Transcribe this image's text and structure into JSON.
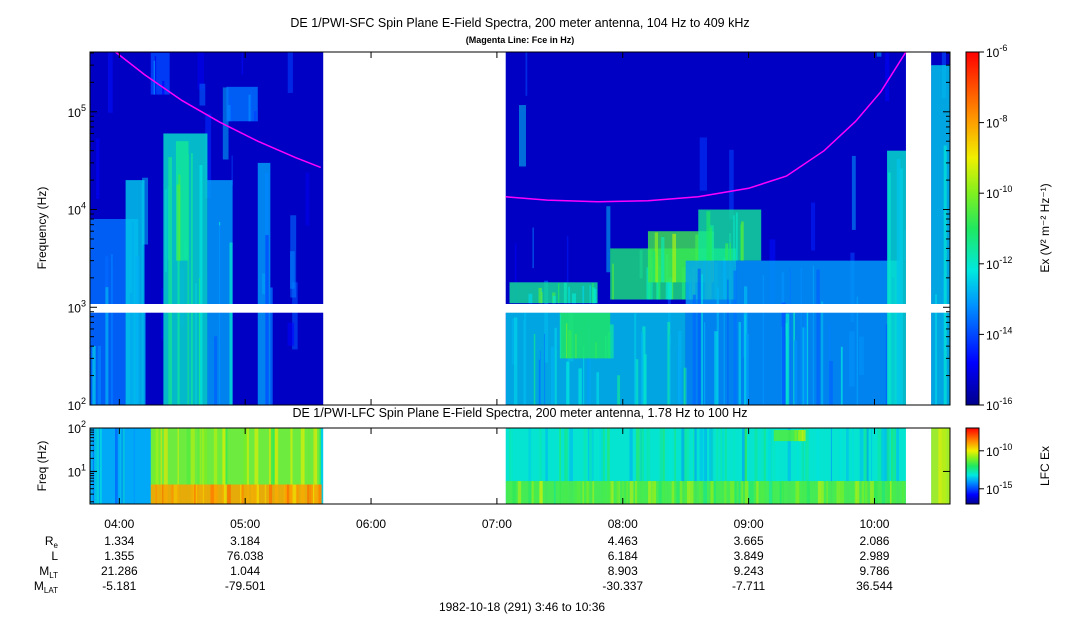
{
  "top_panel": {
    "title": "DE 1/PWI-SFC  Spin Plane E-Field Spectra, 200 meter antenna, 104 Hz to 409 kHz",
    "subtitle": "(Magenta Line: Fce in Hz)",
    "ylabel": "Frequency (Hz)",
    "colorbar_label": "Ex (V² m⁻² Hz⁻¹)"
  },
  "bottom_panel": {
    "title": "DE 1/PWI-LFC  Spin Plane E-Field Spectra, 200 meter antenna, 1.78 Hz to 100 Hz",
    "ylabel": "Freq (Hz)",
    "colorbar_label": "LFC Ex"
  },
  "footer": {
    "caption": "1982-10-18 (291) 3:46 to 10:36"
  },
  "orbit_table": {
    "row_labels": [
      {
        "main": "R",
        "sub": "e"
      },
      {
        "main": "L",
        "sub": ""
      },
      {
        "main": "M",
        "sub": "LT"
      },
      {
        "main": "M",
        "sub": "LAT"
      }
    ],
    "columns": [
      {
        "time": 4.0,
        "values": [
          "1.334",
          "1.355",
          "21.286",
          "-5.181"
        ]
      },
      {
        "time": 5.0,
        "values": [
          "3.184",
          "76.038",
          "1.044",
          "-79.501"
        ]
      },
      {
        "time": 8.0,
        "values": [
          "4.463",
          "6.184",
          "8.903",
          "-30.337"
        ]
      },
      {
        "time": 9.0,
        "values": [
          "3.665",
          "3.849",
          "9.243",
          "-7.711"
        ]
      },
      {
        "time": 10.0,
        "values": [
          "2.086",
          "2.989",
          "9.786",
          "36.544"
        ]
      }
    ]
  },
  "chart_data": [
    {
      "type": "heatmap",
      "name": "sfc_spectrogram",
      "x_unit": "hours UT",
      "xlim": [
        3.767,
        10.6
      ],
      "y_scale": "log",
      "ylim": [
        100,
        409000
      ],
      "y_ticks": [
        {
          "value": 100,
          "base": "10",
          "exp": "2"
        },
        {
          "value": 1000,
          "base": "10",
          "exp": "3"
        },
        {
          "value": 10000,
          "base": "10",
          "exp": "4"
        },
        {
          "value": 100000,
          "base": "10",
          "exp": "5"
        }
      ],
      "x_ticks": [
        {
          "value": 4,
          "label": "04:00"
        },
        {
          "value": 5,
          "label": "05:00"
        },
        {
          "value": 6,
          "label": "06:00"
        },
        {
          "value": 7,
          "label": "07:00"
        },
        {
          "value": 8,
          "label": "08:00"
        },
        {
          "value": 9,
          "label": "09:00"
        },
        {
          "value": 10,
          "label": "10:00"
        }
      ],
      "data_gaps": [
        [
          5.62,
          7.07
        ],
        [
          10.25,
          10.45
        ]
      ],
      "missing_band_hz": [
        880,
        1080
      ],
      "colorbar": {
        "scale": "log",
        "range": [
          1e-16,
          1e-06
        ],
        "ticks": [
          {
            "value": 1e-06,
            "base": "10",
            "exp": "-6"
          },
          {
            "value": 1e-08,
            "base": "10",
            "exp": "-8"
          },
          {
            "value": 1e-10,
            "base": "10",
            "exp": "-10"
          },
          {
            "value": 1e-12,
            "base": "10",
            "exp": "-12"
          },
          {
            "value": 1e-14,
            "base": "10",
            "exp": "-14"
          },
          {
            "value": 1e-16,
            "base": "10",
            "exp": "-16"
          }
        ]
      },
      "fce_line": {
        "color": "#ff00ff",
        "points": [
          [
            3.97,
            409000
          ],
          [
            4.2,
            240000
          ],
          [
            4.5,
            130000
          ],
          [
            4.8,
            78000
          ],
          [
            5.1,
            50000
          ],
          [
            5.4,
            34000
          ],
          [
            5.6,
            27000
          ],
          [
            7.07,
            13500
          ],
          [
            7.4,
            12500
          ],
          [
            7.8,
            12000
          ],
          [
            8.2,
            12300
          ],
          [
            8.6,
            13500
          ],
          [
            9.0,
            16500
          ],
          [
            9.3,
            22000
          ],
          [
            9.6,
            40000
          ],
          [
            9.85,
            80000
          ],
          [
            10.05,
            160000
          ],
          [
            10.25,
            409000
          ]
        ]
      },
      "features": [
        {
          "t0": 3.77,
          "t1": 4.15,
          "f0": 100,
          "f1": 8000,
          "level": -13.5
        },
        {
          "t0": 4.05,
          "t1": 4.2,
          "f0": 100,
          "f1": 20000,
          "level": -12.5
        },
        {
          "t0": 4.35,
          "t1": 4.7,
          "f0": 100,
          "f1": 60000,
          "level": -12
        },
        {
          "t0": 4.45,
          "t1": 4.55,
          "f0": 3000,
          "f1": 50000,
          "level": -11.5
        },
        {
          "t0": 4.7,
          "t1": 4.9,
          "f0": 100,
          "f1": 20000,
          "level": -13
        },
        {
          "t0": 5.1,
          "t1": 5.2,
          "f0": 100,
          "f1": 30000,
          "level": -13
        },
        {
          "t0": 4.25,
          "t1": 4.4,
          "f0": 150000,
          "f1": 400000,
          "level": -14
        },
        {
          "t0": 4.85,
          "t1": 5.1,
          "f0": 80000,
          "f1": 180000,
          "level": -13.5
        },
        {
          "t0": 7.07,
          "t1": 8.5,
          "f0": 100,
          "f1": 900,
          "level": -12.5
        },
        {
          "t0": 7.5,
          "t1": 7.9,
          "f0": 300,
          "f1": 880,
          "level": -11
        },
        {
          "t0": 7.1,
          "t1": 7.8,
          "f0": 1100,
          "f1": 1800,
          "level": -11.5
        },
        {
          "t0": 7.9,
          "t1": 8.9,
          "f0": 1200,
          "f1": 4000,
          "level": -11.2
        },
        {
          "t0": 8.2,
          "t1": 8.7,
          "f0": 1800,
          "f1": 6000,
          "level": -10.7
        },
        {
          "t0": 8.6,
          "t1": 9.1,
          "f0": 3000,
          "f1": 10000,
          "level": -11.5
        },
        {
          "t0": 8.5,
          "t1": 10.2,
          "f0": 100,
          "f1": 3000,
          "level": -13
        },
        {
          "t0": 10.1,
          "t1": 10.25,
          "f0": 100,
          "f1": 40000,
          "level": -12
        },
        {
          "t0": 10.45,
          "t1": 10.6,
          "f0": 100,
          "f1": 300000,
          "level": -12.5
        }
      ]
    },
    {
      "type": "heatmap",
      "name": "lfc_spectrogram",
      "x_unit": "hours UT",
      "xlim": [
        3.767,
        10.6
      ],
      "y_scale": "log",
      "ylim": [
        1.78,
        100
      ],
      "y_ticks": [
        {
          "value": 10,
          "base": "10",
          "exp": "1"
        },
        {
          "value": 100,
          "base": "10",
          "exp": "2"
        }
      ],
      "data_gaps": [
        [
          5.62,
          7.07
        ],
        [
          10.25,
          10.45
        ]
      ],
      "colorbar": {
        "scale": "log",
        "range": [
          1e-17,
          1e-07
        ],
        "ticks": [
          {
            "value": 1e-10,
            "base": "10",
            "exp": "-10"
          },
          {
            "value": 1e-15,
            "base": "10",
            "exp": "-15"
          }
        ]
      },
      "features": [
        {
          "t0": 3.77,
          "t1": 4.25,
          "f0": 1.78,
          "f1": 100,
          "level": -14
        },
        {
          "t0": 4.25,
          "t1": 5.6,
          "f0": 1.78,
          "f1": 100,
          "level": -11
        },
        {
          "t0": 4.25,
          "t1": 5.6,
          "f0": 1.78,
          "f1": 5,
          "level": -9
        },
        {
          "t0": 7.07,
          "t1": 10.25,
          "f0": 1.78,
          "f1": 100,
          "level": -13
        },
        {
          "t0": 7.07,
          "t1": 10.25,
          "f0": 1.78,
          "f1": 6,
          "level": -11.5
        },
        {
          "t0": 9.2,
          "t1": 9.45,
          "f0": 50,
          "f1": 90,
          "level": -11.5
        },
        {
          "t0": 10.45,
          "t1": 10.6,
          "f0": 1.78,
          "f1": 100,
          "level": -10.5
        }
      ]
    }
  ]
}
